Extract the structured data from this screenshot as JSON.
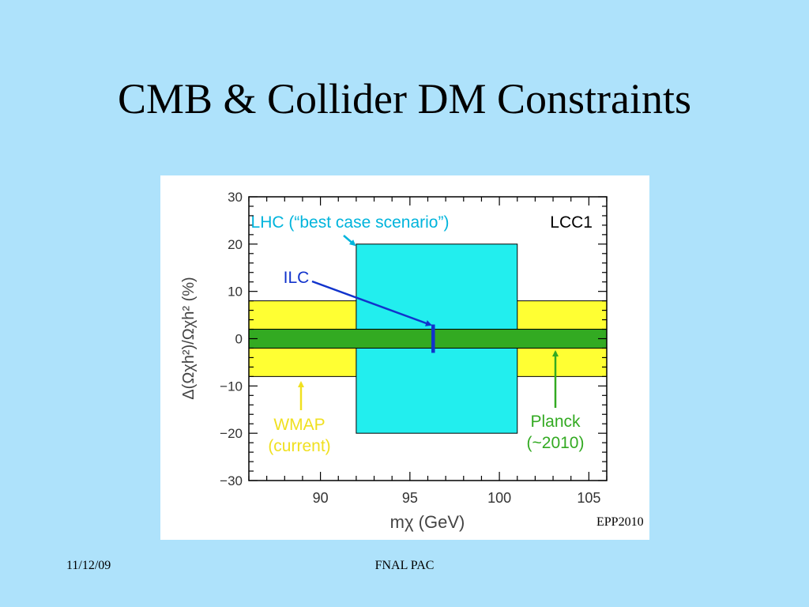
{
  "slide": {
    "title": "CMB & Collider DM Constraints",
    "footer_date": "11/12/09",
    "footer_center": "FNAL PAC",
    "figure_tag": "EPP2010"
  },
  "chart_data": {
    "type": "bar",
    "xlabel": "mχ (GeV)",
    "ylabel": "Δ(Ωχh²)/Ωχh² (%)",
    "xlim": [
      86,
      106
    ],
    "ylim": [
      -30,
      30
    ],
    "x_ticks": [
      90,
      95,
      100,
      105
    ],
    "y_ticks": [
      -30,
      -20,
      -10,
      0,
      10,
      20,
      30
    ],
    "legend_label": "LCC1",
    "regions": [
      {
        "name": "WMAP",
        "x_range": [
          86,
          106
        ],
        "y_range": [
          -8,
          8
        ],
        "color": "#ffff33"
      },
      {
        "name": "LHC",
        "x_range": [
          92,
          101
        ],
        "y_range": [
          -20,
          20
        ],
        "color": "#22eeee"
      },
      {
        "name": "Planck",
        "x_range": [
          86,
          106
        ],
        "y_range": [
          -2,
          2
        ],
        "color": "#33aa22"
      },
      {
        "name": "ILC",
        "x_range": [
          96.2,
          96.4
        ],
        "y_range": [
          -3,
          3
        ],
        "color": "#1133cc"
      }
    ],
    "annotations": [
      {
        "lines": [
          "LHC (“best case scenario”)"
        ],
        "color": "#00b4dc"
      },
      {
        "lines": [
          "ILC"
        ],
        "color": "#1133cc"
      },
      {
        "lines": [
          "WMAP",
          "(current)"
        ],
        "color": "#f0e020"
      },
      {
        "lines": [
          "Planck",
          "(~2010)"
        ],
        "color": "#33aa22"
      }
    ]
  }
}
